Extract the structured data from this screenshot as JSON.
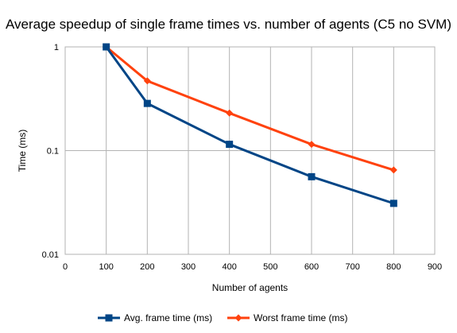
{
  "chart_data": {
    "type": "line",
    "title": "Average speedup of single frame times vs. number of agents (C5 no SVM)",
    "xlabel": "Number of agents",
    "ylabel": "Time (ms)",
    "xlim": [
      0,
      900
    ],
    "ylim": [
      0.01,
      1
    ],
    "y_scale": "log",
    "x_ticks": [
      0,
      100,
      200,
      300,
      400,
      500,
      600,
      700,
      800,
      900
    ],
    "x_tick_labels": [
      "0",
      "100",
      "200",
      "300",
      "400",
      "500",
      "600",
      "700",
      "800",
      "900"
    ],
    "y_ticks": [
      1,
      0.1,
      0.01
    ],
    "y_tick_labels": [
      "1",
      "0.1",
      "0.01"
    ],
    "grid": "vertical and horizontal at ticks",
    "legend_position": "bottom",
    "x": [
      100,
      200,
      400,
      600,
      800
    ],
    "series": [
      {
        "name": "Avg. frame time (ms)",
        "color": "#004586",
        "marker": "square",
        "values": [
          1,
          0.285,
          0.115,
          0.056,
          0.031
        ]
      },
      {
        "name": "Worst frame time (ms)",
        "color": "#ff420e",
        "marker": "diamond",
        "values": [
          1,
          0.47,
          0.23,
          0.115,
          0.065
        ]
      }
    ]
  }
}
